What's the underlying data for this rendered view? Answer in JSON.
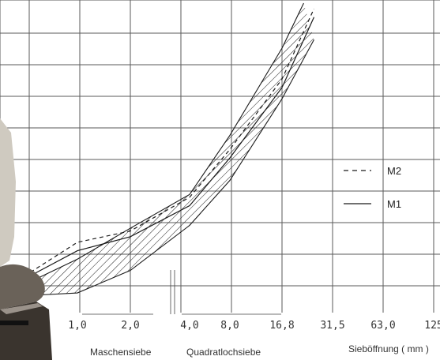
{
  "chart_data": {
    "type": "line",
    "x_ticks": [
      "1,0",
      "2,0",
      "4,0",
      "8,0",
      "16,8",
      "31,5",
      "63,0",
      "125"
    ],
    "x_group_labels": [
      "Maschensiebe",
      "Quadratlochsiebe"
    ],
    "xlabel": "Sieböffnung ( mm )",
    "legend": [
      {
        "label": "M2",
        "style": "dashed"
      },
      {
        "label": "M1",
        "style": "solid"
      }
    ],
    "grid": true,
    "legend_position": "right",
    "band": {
      "description": "hatched grading envelope",
      "lower": [
        [
          0.5,
          6
        ],
        [
          1.0,
          7
        ],
        [
          2.0,
          15
        ],
        [
          4.0,
          31
        ],
        [
          8.0,
          47
        ],
        [
          16.8,
          76
        ],
        [
          25,
          97
        ]
      ],
      "upper": [
        [
          0.5,
          10
        ],
        [
          1.0,
          19
        ],
        [
          2.0,
          30
        ],
        [
          4.0,
          42
        ],
        [
          8.0,
          63
        ],
        [
          16.8,
          94
        ],
        [
          22,
          110
        ]
      ]
    },
    "series": [
      {
        "name": "M2",
        "style": "dashed",
        "points": [
          [
            0.5,
            13
          ],
          [
            1.0,
            25
          ],
          [
            2.0,
            29
          ],
          [
            4.0,
            41
          ],
          [
            8.0,
            58
          ],
          [
            16.8,
            83
          ],
          [
            25,
            108
          ]
        ]
      },
      {
        "name": "M1",
        "style": "solid",
        "points": [
          [
            0.5,
            12
          ],
          [
            1.0,
            22
          ],
          [
            2.0,
            27
          ],
          [
            4.0,
            38
          ],
          [
            8.0,
            55
          ],
          [
            16.8,
            80
          ],
          [
            25,
            105
          ]
        ]
      }
    ]
  },
  "colors": {
    "grid": "#5a5a5a",
    "ink": "#1a1a1a",
    "background": "#ffffff"
  }
}
